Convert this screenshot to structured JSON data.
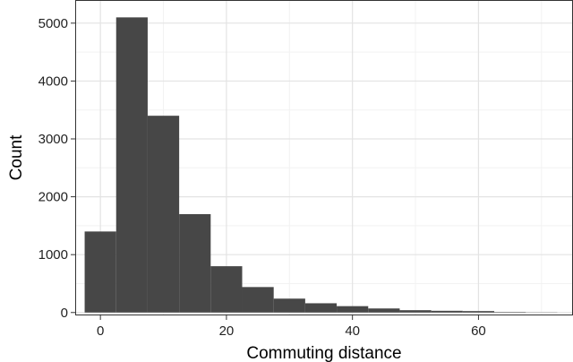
{
  "chart_data": {
    "type": "bar",
    "subtype": "histogram",
    "title": "",
    "xlabel": "Commuting distance",
    "ylabel": "Count",
    "xlim": [
      -4,
      75
    ],
    "ylim": [
      -50,
      5400
    ],
    "x_ticks": [
      0,
      20,
      40,
      60
    ],
    "y_ticks": [
      0,
      1000,
      2000,
      3000,
      4000,
      5000
    ],
    "grid": true,
    "legend": "none",
    "bar_color": "#474747",
    "bins": [
      {
        "x0": -2.5,
        "x1": 2.5,
        "count": 1400
      },
      {
        "x0": 2.5,
        "x1": 7.5,
        "count": 5100
      },
      {
        "x0": 7.5,
        "x1": 12.5,
        "count": 3400
      },
      {
        "x0": 12.5,
        "x1": 17.5,
        "count": 1700
      },
      {
        "x0": 17.5,
        "x1": 22.5,
        "count": 800
      },
      {
        "x0": 22.5,
        "x1": 27.5,
        "count": 440
      },
      {
        "x0": 27.5,
        "x1": 32.5,
        "count": 240
      },
      {
        "x0": 32.5,
        "x1": 37.5,
        "count": 160
      },
      {
        "x0": 37.5,
        "x1": 42.5,
        "count": 110
      },
      {
        "x0": 42.5,
        "x1": 47.5,
        "count": 70
      },
      {
        "x0": 47.5,
        "x1": 52.5,
        "count": 40
      },
      {
        "x0": 52.5,
        "x1": 57.5,
        "count": 30
      },
      {
        "x0": 57.5,
        "x1": 62.5,
        "count": 25
      },
      {
        "x0": 62.5,
        "x1": 67.5,
        "count": 8
      },
      {
        "x0": 67.5,
        "x1": 72.5,
        "count": 3
      }
    ]
  }
}
